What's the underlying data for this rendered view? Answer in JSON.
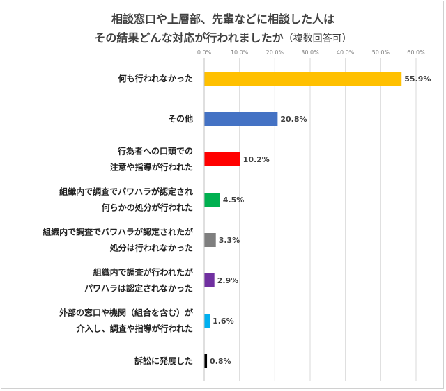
{
  "chart_data": {
    "type": "bar",
    "orientation": "horizontal",
    "title_line1": "相談窓口や上層部、先輩などに相談した人は",
    "title_line2": "その結果どんな対応が行われましたか",
    "title_note": "（複数回答可）",
    "xlim": [
      0,
      60
    ],
    "x_ticks": [
      "0.0%",
      "10.0%",
      "20.0%",
      "30.0%",
      "40.0%",
      "50.0%",
      "60.0%"
    ],
    "grid": true,
    "categories": [
      [
        "何も行われなかった"
      ],
      [
        "その他"
      ],
      [
        "行為者への口頭での",
        "注意や指導が行われた"
      ],
      [
        "組織内で調査でパワハラが認定され",
        "何らかの処分が行われた"
      ],
      [
        "組織内で調査でパワハラが認定されたが",
        "処分は行われなかった"
      ],
      [
        "組織内で調査が行われたが",
        "パワハラは認定されなかった"
      ],
      [
        "外部の窓口や機関（組合を含む）が",
        "介入し、調査や指導が行われた"
      ],
      [
        "訴訟に発展した"
      ]
    ],
    "values": [
      55.9,
      20.8,
      10.2,
      4.5,
      3.3,
      2.9,
      1.6,
      0.8
    ],
    "value_labels": [
      "55.9%",
      "20.8%",
      "10.2%",
      "4.5%",
      "3.3%",
      "2.9%",
      "1.6%",
      "0.8%"
    ],
    "colors": [
      "#FFC000",
      "#4472C4",
      "#FF0000",
      "#00B050",
      "#7F7F7F",
      "#7030A0",
      "#00B0F0",
      "#000000"
    ]
  }
}
